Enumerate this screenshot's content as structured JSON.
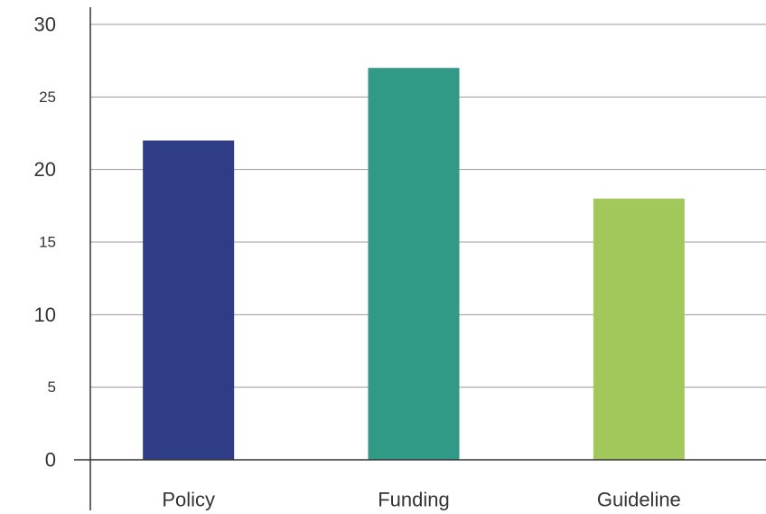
{
  "chart_data": {
    "type": "bar",
    "title": "",
    "xlabel": "",
    "ylabel": "",
    "categories": [
      "Policy",
      "Funding",
      "Guideline"
    ],
    "values": [
      22,
      27,
      18
    ],
    "colors": [
      "#2f3d87",
      "#319a87",
      "#a2c75a"
    ],
    "ylim": [
      0,
      30
    ],
    "yticks": [
      0,
      5,
      10,
      15,
      20,
      25,
      30
    ],
    "ytick_labels": [
      "0",
      "5",
      "10",
      "15",
      "20",
      "25",
      "30"
    ],
    "grid": true,
    "legend": "none"
  }
}
